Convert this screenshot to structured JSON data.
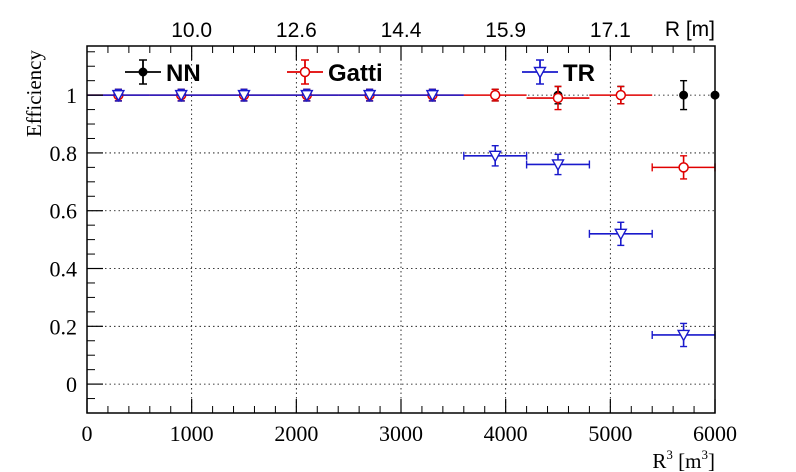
{
  "chart_data": {
    "type": "scatter",
    "title": "",
    "xlabel": "R",
    "xlabel_exponent": "3",
    "xlabel_unit_open": " [m",
    "xlabel_unit_exponent": "3",
    "xlabel_unit_close": "]",
    "ylabel": "Efficiency",
    "xlim": [
      0,
      6000
    ],
    "ylim": [
      -0.1,
      1.17
    ],
    "x_ticks": [
      0,
      1000,
      2000,
      3000,
      4000,
      5000,
      6000
    ],
    "x_tick_labels": [
      "0",
      "1000",
      "2000",
      "3000",
      "4000",
      "5000",
      "6000"
    ],
    "y_ticks": [
      0,
      0.2,
      0.4,
      0.6,
      0.8,
      1
    ],
    "y_tick_labels": [
      "0",
      "0.2",
      "0.4",
      "0.6",
      "0.8",
      "1"
    ],
    "top_axis": {
      "label": "R [m]",
      "ticks_x": [
        1000,
        2000,
        3000,
        4000,
        5000
      ],
      "tick_labels": [
        "10.0",
        "12.6",
        "14.4",
        "15.9",
        "17.1"
      ]
    },
    "grid": true,
    "legend_position": "top",
    "series": [
      {
        "name": "NN",
        "color": "#000000",
        "marker": "filled-circle",
        "x_halfwidth": 0,
        "points": [
          {
            "x": 300,
            "y": 1.0,
            "err": 0.02
          },
          {
            "x": 900,
            "y": 1.0,
            "err": 0.02
          },
          {
            "x": 1500,
            "y": 1.0,
            "err": 0.02
          },
          {
            "x": 2100,
            "y": 1.0,
            "err": 0.02
          },
          {
            "x": 2700,
            "y": 1.0,
            "err": 0.02
          },
          {
            "x": 3300,
            "y": 1.0,
            "err": 0.02
          },
          {
            "x": 3900,
            "y": 1.0,
            "err": 0.02
          },
          {
            "x": 4500,
            "y": 1.0,
            "err": 0.03
          },
          {
            "x": 5100,
            "y": 1.0,
            "err": 0.03
          },
          {
            "x": 5700,
            "y": 1.0,
            "err": 0.05
          },
          {
            "x": 6000,
            "y": 1.0,
            "err": 0
          }
        ]
      },
      {
        "name": "Gatti",
        "color": "#e00000",
        "marker": "open-circle",
        "x_halfwidth": 300,
        "points": [
          {
            "x": 300,
            "y": 1.0,
            "err": 0.02
          },
          {
            "x": 900,
            "y": 1.0,
            "err": 0.02
          },
          {
            "x": 1500,
            "y": 1.0,
            "err": 0.02
          },
          {
            "x": 2100,
            "y": 1.0,
            "err": 0.02
          },
          {
            "x": 2700,
            "y": 1.0,
            "err": 0.02
          },
          {
            "x": 3300,
            "y": 1.0,
            "err": 0.02
          },
          {
            "x": 3900,
            "y": 1.0,
            "err": 0.02
          },
          {
            "x": 4500,
            "y": 0.99,
            "err": 0.04
          },
          {
            "x": 5100,
            "y": 1.0,
            "err": 0.03
          },
          {
            "x": 5700,
            "y": 0.75,
            "err": 0.04
          }
        ]
      },
      {
        "name": "TR",
        "color": "#1a1acc",
        "marker": "open-triangle-down",
        "x_halfwidth": 300,
        "points": [
          {
            "x": 300,
            "y": 1.0,
            "err": 0.02
          },
          {
            "x": 900,
            "y": 1.0,
            "err": 0.02
          },
          {
            "x": 1500,
            "y": 1.0,
            "err": 0.02
          },
          {
            "x": 2100,
            "y": 1.0,
            "err": 0.02
          },
          {
            "x": 2700,
            "y": 1.0,
            "err": 0.02
          },
          {
            "x": 3300,
            "y": 1.0,
            "err": 0.02
          },
          {
            "x": 3900,
            "y": 0.79,
            "err": 0.035
          },
          {
            "x": 4500,
            "y": 0.76,
            "err": 0.035
          },
          {
            "x": 5100,
            "y": 0.52,
            "err": 0.04
          },
          {
            "x": 5700,
            "y": 0.17,
            "err": 0.04
          }
        ]
      }
    ]
  }
}
